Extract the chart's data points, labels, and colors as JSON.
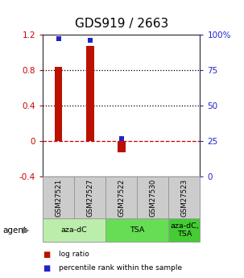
{
  "title": "GDS919 / 2663",
  "samples": [
    "GSM27521",
    "GSM27527",
    "GSM27522",
    "GSM27530",
    "GSM27523"
  ],
  "log_ratio": [
    0.84,
    1.07,
    -0.13,
    0.0,
    0.0
  ],
  "percentile_rank": [
    97,
    96,
    27,
    0,
    0
  ],
  "ylim_left": [
    -0.4,
    1.2
  ],
  "ylim_right": [
    0,
    100
  ],
  "yticks_left": [
    -0.4,
    0,
    0.4,
    0.8,
    1.2
  ],
  "yticks_right": [
    0,
    25,
    50,
    75,
    100
  ],
  "ytick_labels_left": [
    "-0.4",
    "0",
    "0.4",
    "0.8",
    "1.2"
  ],
  "ytick_labels_right": [
    "0",
    "25",
    "50",
    "75",
    "100%"
  ],
  "hlines_dotted": [
    0.4,
    0.8
  ],
  "zero_line_color": "#cc0000",
  "hline_color": "#000000",
  "bar_color_red": "#bb1100",
  "bar_color_blue": "#2222cc",
  "agent_groups": [
    {
      "label": "aza-dC",
      "cols": [
        0,
        1
      ],
      "color": "#bbeeaa"
    },
    {
      "label": "TSA",
      "cols": [
        2,
        3
      ],
      "color": "#66dd55"
    },
    {
      "label": "aza-dC,\nTSA",
      "cols": [
        4
      ],
      "color": "#44cc33"
    }
  ],
  "sample_bg_color": "#cccccc",
  "agent_label": "agent",
  "legend_red_label": "log ratio",
  "legend_blue_label": "percentile rank within the sample",
  "title_fontsize": 11,
  "tick_fontsize": 7.5,
  "bar_width": 0.25
}
